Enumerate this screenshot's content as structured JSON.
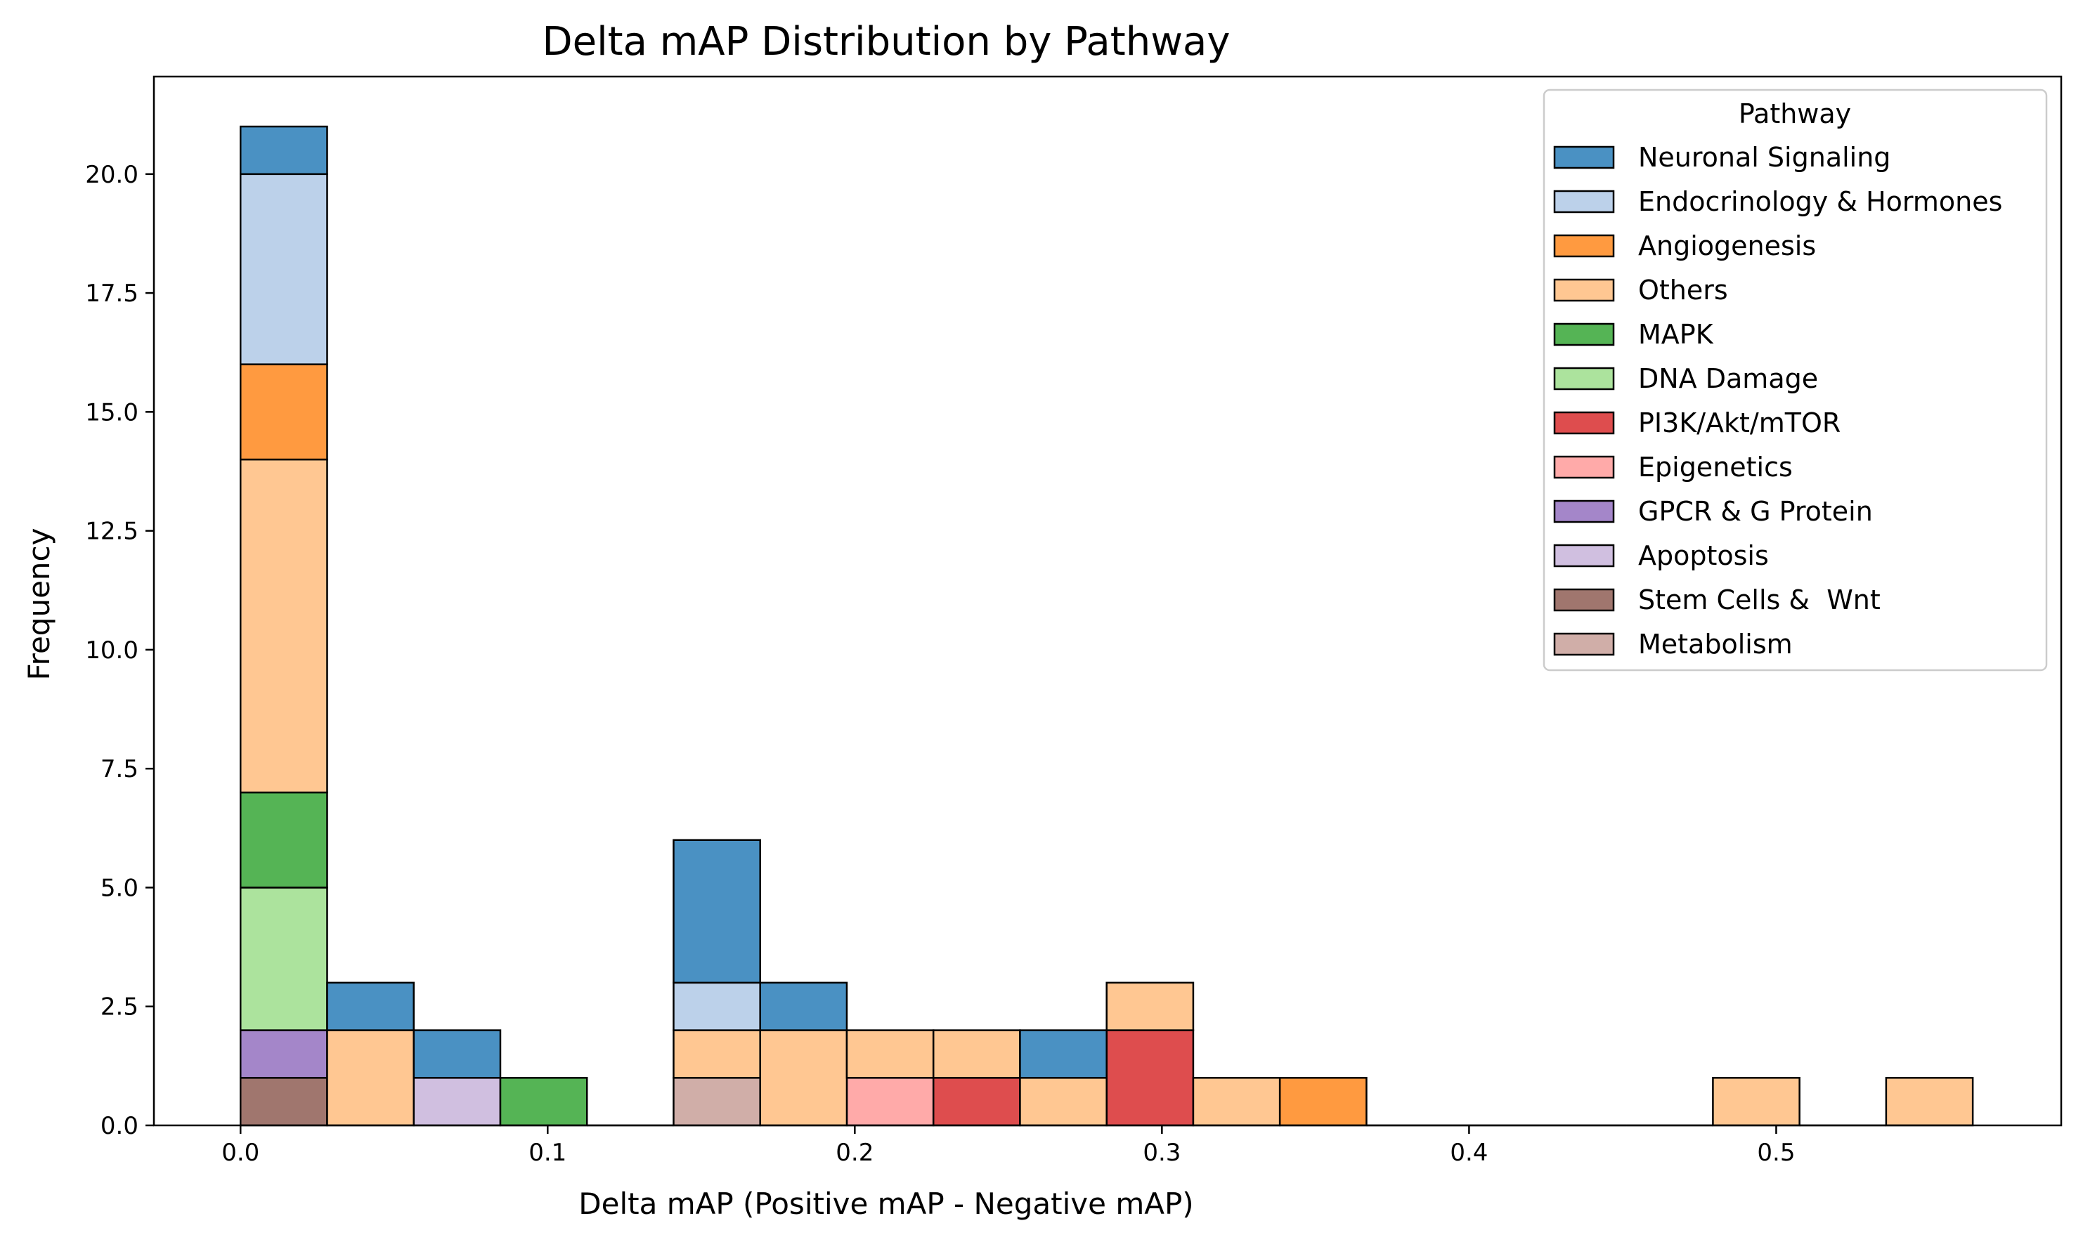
{
  "chart_data": {
    "type": "bar",
    "title": "Delta mAP Distribution by Pathway",
    "xlabel": "Delta mAP (Positive mAP - Negative mAP)",
    "ylabel": "Frequency",
    "xlim": [
      -0.0282,
      0.5928
    ],
    "ylim": [
      0,
      22.05
    ],
    "x_ticks": [
      0.0,
      0.1,
      0.2,
      0.3,
      0.4,
      0.5
    ],
    "x_tick_labels": [
      "0.0",
      "0.1",
      "0.2",
      "0.3",
      "0.4",
      "0.5"
    ],
    "y_ticks": [
      0.0,
      2.5,
      5.0,
      7.5,
      10.0,
      12.5,
      15.0,
      17.5,
      20.0
    ],
    "y_tick_labels": [
      "0.0",
      "2.5",
      "5.0",
      "7.5",
      "10.0",
      "12.5",
      "15.0",
      "17.5",
      "20.0"
    ],
    "grid": false,
    "stacked": true,
    "bin_width": 0.0282,
    "bin_edges": [
      0.0,
      0.0282,
      0.0564,
      0.0846,
      0.1128,
      0.141,
      0.1692,
      0.1974,
      0.2256,
      0.2538,
      0.282,
      0.3102,
      0.3384,
      0.3666,
      0.3948,
      0.423,
      0.4512,
      0.4794,
      0.5076,
      0.5358,
      0.564
    ],
    "legend": {
      "title": "Pathway",
      "position": "upper right"
    },
    "series": [
      {
        "name": "Metabolism",
        "color": "#d0aea8",
        "values": [
          0,
          0,
          0,
          0,
          0,
          1,
          0,
          0,
          0,
          0,
          0,
          0,
          0,
          0,
          0,
          0,
          0,
          0,
          0,
          0
        ]
      },
      {
        "name": "Stem Cells &  Wnt",
        "color": "#a0766e",
        "values": [
          1,
          0,
          0,
          0,
          0,
          0,
          0,
          0,
          0,
          0,
          0,
          0,
          0,
          0,
          0,
          0,
          0,
          0,
          0,
          0
        ]
      },
      {
        "name": "Apoptosis",
        "color": "#d0bfe0",
        "values": [
          0,
          0,
          1,
          0,
          0,
          0,
          0,
          0,
          0,
          0,
          0,
          0,
          0,
          0,
          0,
          0,
          0,
          0,
          0,
          0
        ]
      },
      {
        "name": "GPCR & G Protein",
        "color": "#a486c9",
        "values": [
          1,
          0,
          0,
          0,
          0,
          0,
          0,
          0,
          0,
          0,
          0,
          0,
          0,
          0,
          0,
          0,
          0,
          0,
          0,
          0
        ]
      },
      {
        "name": "Epigenetics",
        "color": "#ffaaa9",
        "values": [
          0,
          0,
          0,
          0,
          0,
          0,
          0,
          1,
          0,
          0,
          0,
          0,
          0,
          0,
          0,
          0,
          0,
          0,
          0,
          0
        ]
      },
      {
        "name": "PI3K/Akt/mTOR",
        "color": "#de4d4e",
        "values": [
          0,
          0,
          0,
          0,
          0,
          0,
          0,
          0,
          1,
          0,
          2,
          0,
          0,
          0,
          0,
          0,
          0,
          0,
          0,
          0
        ]
      },
      {
        "name": "DNA Damage",
        "color": "#ace39d",
        "values": [
          3,
          0,
          0,
          0,
          0,
          0,
          0,
          0,
          0,
          0,
          0,
          0,
          0,
          0,
          0,
          0,
          0,
          0,
          0,
          0
        ]
      },
      {
        "name": "MAPK",
        "color": "#55b455",
        "values": [
          2,
          0,
          0,
          1,
          0,
          0,
          0,
          0,
          0,
          0,
          0,
          0,
          0,
          0,
          0,
          0,
          0,
          0,
          0,
          0
        ]
      },
      {
        "name": "Others",
        "color": "#ffc792",
        "values": [
          7,
          2,
          0,
          0,
          0,
          1,
          2,
          1,
          1,
          1,
          1,
          1,
          0,
          0,
          0,
          0,
          0,
          1,
          0,
          1
        ]
      },
      {
        "name": "Angiogenesis",
        "color": "#ff9a40",
        "values": [
          2,
          0,
          0,
          0,
          0,
          0,
          0,
          0,
          0,
          0,
          0,
          0,
          1,
          0,
          0,
          0,
          0,
          0,
          0,
          0
        ]
      },
      {
        "name": "Endocrinology & Hormones",
        "color": "#bcd1ea",
        "values": [
          4,
          0,
          0,
          0,
          0,
          1,
          0,
          0,
          0,
          0,
          0,
          0,
          0,
          0,
          0,
          0,
          0,
          0,
          0,
          0
        ]
      },
      {
        "name": "Neuronal Signaling",
        "color": "#4a91c3",
        "values": [
          1,
          1,
          1,
          0,
          0,
          3,
          1,
          0,
          0,
          1,
          0,
          0,
          0,
          0,
          0,
          0,
          0,
          0,
          0,
          0
        ]
      }
    ],
    "legend_order": [
      "Neuronal Signaling",
      "Endocrinology & Hormones",
      "Angiogenesis",
      "Others",
      "MAPK",
      "DNA Damage",
      "PI3K/Akt/mTOR",
      "Epigenetics",
      "GPCR & G Protein",
      "Apoptosis",
      "Stem Cells &  Wnt",
      "Metabolism"
    ]
  }
}
